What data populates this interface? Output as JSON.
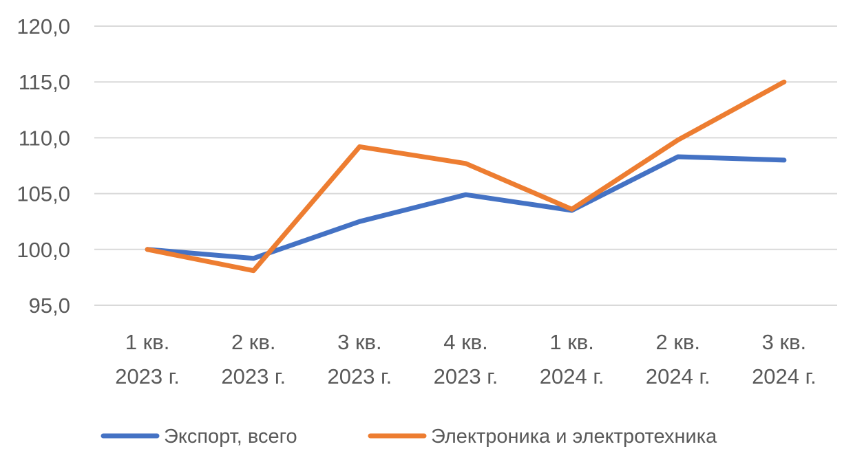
{
  "chart_data": {
    "type": "line",
    "categories": [
      [
        "1 кв.",
        "2023 г."
      ],
      [
        "2 кв.",
        "2023 г."
      ],
      [
        "3 кв.",
        "2023 г."
      ],
      [
        "4 кв.",
        "2023 г."
      ],
      [
        "1 кв.",
        "2024 г."
      ],
      [
        "2 кв.",
        "2024 г."
      ],
      [
        "3 кв.",
        "2024 г."
      ]
    ],
    "series": [
      {
        "name": "Экспорт, всего",
        "color": "#4472C4",
        "values": [
          100.0,
          99.2,
          102.5,
          104.9,
          103.5,
          108.3,
          108.0
        ]
      },
      {
        "name": "Электроника и электротехника",
        "color": "#ED7D31",
        "values": [
          100.0,
          98.1,
          109.2,
          107.7,
          103.6,
          109.8,
          115.0
        ]
      }
    ],
    "ylim": [
      95,
      120
    ],
    "yticks": [
      "95,0",
      "100,0",
      "105,0",
      "110,0",
      "115,0",
      "120,0"
    ],
    "grid": true,
    "legend": "bottom"
  }
}
